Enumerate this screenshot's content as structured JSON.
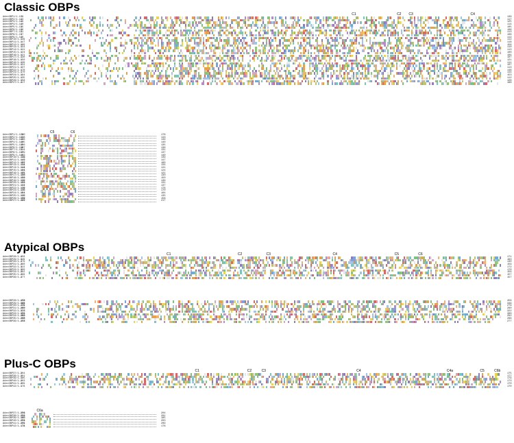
{
  "headings": {
    "classic": "Classic OBPs",
    "atypical": "Atypical OBPs",
    "plusc": "Plus-C OBPs"
  },
  "cysteine_markers": {
    "classic_a": [
      "C1",
      "C2",
      "C3",
      "C4"
    ],
    "classic_b": [
      "C5",
      "C6"
    ],
    "atypical_a": [
      "C1",
      "C2",
      "C3",
      "C4",
      "C5",
      "C6"
    ],
    "plusc_a": [
      "C1",
      "C2",
      "C3",
      "C4",
      "C4a",
      "C5",
      "C6b"
    ],
    "plusc_b": [
      "C6a"
    ]
  },
  "blocks": {
    "classic_a": {
      "labels": [
        "AdecOBP1/1-178",
        "AdecOBP2/1-143",
        "AdecOBP3/1-149",
        "AdecOBP4/1-140",
        "AdecOBP5/1-135",
        "AdecOBP6/1-136",
        "AdecOBP7/1-131",
        "AdecOBP8/1-137",
        "AdecOBP9/1-140",
        "AdecOBP10/1-139",
        "AdecOBP11/1-147",
        "AdecOBP12/1-189",
        "AdecOBP13/1-134",
        "AdecOBP14/1-141",
        "AdecOBP15/1-124",
        "AdecOBP16/1-121",
        "AdecOBP17/1-130",
        "AdecOBP18/1-150",
        "AdecOBP19/1-139",
        "AdecOBP20/1-131",
        "AdecOBP21/1-137",
        "AdecOBP22/1-178",
        "AdecOBP23/1-170",
        "AdecOBP24/1-184",
        "AdecOBP25/1-135",
        "AdecOBP26/1-158",
        "AdecOBP27/1-217"
      ],
      "starts": [
        "1",
        "1",
        "1",
        "1",
        "1",
        "1",
        "1",
        "1",
        "1",
        "1",
        "1",
        "1",
        "1",
        "1",
        "1",
        "1",
        "1",
        "1",
        "1",
        "1",
        "1",
        "1",
        "1",
        "1",
        "1",
        "1",
        "1"
      ],
      "ends": [
        "139",
        "117",
        "125",
        "114",
        "105",
        "106",
        "113",
        "108",
        "112",
        "112",
        "118",
        "156",
        "110",
        "113",
        "100",
        "104",
        "107",
        "121",
        "111",
        "107",
        "113",
        "148",
        "144",
        "153",
        "112",
        "128",
        "188"
      ]
    },
    "classic_b": {
      "labels": [
        "AdecOBP1/1-178",
        "AdecOBP2/1-143",
        "AdecOBP3/1-149",
        "AdecOBP4/1-140",
        "AdecOBP5/1-135",
        "AdecOBP6/1-136",
        "AdecOBP7/1-131",
        "AdecOBP8/1-137",
        "AdecOBP9/1-140",
        "AdecOBP10/1-139",
        "AdecOBP11/1-147",
        "AdecOBP12/1-189",
        "AdecOBP13/1-134",
        "AdecOBP14/1-141",
        "AdecOBP15/1-124",
        "AdecOBP16/1-121",
        "AdecOBP17/1-130",
        "AdecOBP18/1-150",
        "AdecOBP19/1-139",
        "AdecOBP20/1-131",
        "AdecOBP21/1-137",
        "AdecOBP22/1-178",
        "AdecOBP23/1-170",
        "AdecOBP24/1-184",
        "AdecOBP25/1-135",
        "AdecOBP26/1-158",
        "AdecOBP27/1-217"
      ],
      "starts": [
        "140",
        "118",
        "126",
        "115",
        "106",
        "107",
        "114",
        "109",
        "113",
        "113",
        "119",
        "157",
        "111",
        "114",
        "101",
        "105",
        "108",
        "122",
        "112",
        "108",
        "114",
        "149",
        "145",
        "154",
        "113",
        "129",
        "189"
      ],
      "ends": [
        "178",
        "143",
        "149",
        "140",
        "135",
        "136",
        "131",
        "137",
        "140",
        "139",
        "147",
        "189",
        "134",
        "141",
        "124",
        "121",
        "130",
        "150",
        "139",
        "131",
        "137",
        "178",
        "170",
        "184",
        "135",
        "158",
        "217"
      ]
    },
    "atypical_a": {
      "labels": [
        "AdecOBP28/1-458",
        "AdecOBP29/1-349",
        "AdecOBP30/1-279",
        "AdecOBP31/1-260",
        "AdecOBP32/1-322",
        "AdecOBP33/1-300",
        "AdecOBP34/1-292",
        "AdecOBP35/1-286",
        "AdecOBP36/1-277"
      ],
      "starts": [
        "1",
        "1",
        "1",
        "1",
        "1",
        "1",
        "1",
        "1",
        "1"
      ],
      "ends": [
        "171",
        "163",
        "130",
        "159",
        "172",
        "170",
        "159",
        "157",
        "157"
      ]
    },
    "atypical_b": {
      "labels": [
        "AdecOBP28/1-458",
        "AdecOBP29/1-349",
        "AdecOBP30/1-279",
        "AdecOBP31/1-260",
        "AdecOBP32/1-322",
        "AdecOBP33/1-300",
        "AdecOBP34/1-292",
        "AdecOBP35/1-286",
        "AdecOBP36/1-277"
      ],
      "starts": [
        "172",
        "164",
        "131",
        "160",
        "173",
        "171",
        "160",
        "158",
        "158"
      ],
      "ends": [
        "458",
        "349",
        "279",
        "260",
        "322",
        "300",
        "292",
        "286",
        "277"
      ]
    },
    "plusc_a": {
      "labels": [
        "AdecOBP37/1-204",
        "AdecOBP38/1-201",
        "AdecOBP39/1-185",
        "AdecOBP40/1-203",
        "AdecOBP41/1-209",
        "AdecOBP42/1-178"
      ],
      "starts": [
        "1",
        "1",
        "1",
        "1",
        "1",
        "1"
      ],
      "ends": [
        "175",
        "177",
        "179",
        "173",
        "170",
        "170"
      ]
    },
    "plusc_b": {
      "labels": [
        "AdecOBP37/1-204",
        "AdecOBP38/1-201",
        "AdecOBP39/1-185",
        "AdecOBP40/1-203",
        "AdecOBP41/1-209",
        "AdecOBP42/1-178"
      ],
      "starts": [
        "176",
        "178",
        "180",
        "174",
        "171",
        "171"
      ],
      "ends": [
        "204",
        "201",
        "185",
        "203",
        "209",
        "178"
      ]
    }
  }
}
